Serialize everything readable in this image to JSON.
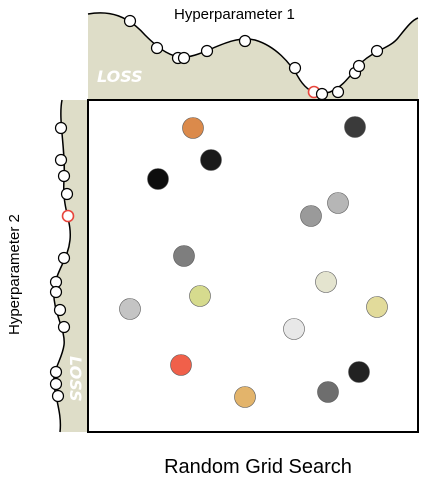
{
  "title": "Random Grid Search",
  "top_axis_label": "Hyperparameter 1",
  "left_axis_label": "Hyperparameter 2",
  "loss_label": "LOSS",
  "colors": {
    "loss_panel": "#deddc8",
    "highlight": "#e8453c",
    "frame": "#000000"
  },
  "points": [
    {
      "color": "#db8a4b"
    },
    {
      "color": "#3a3a3a"
    },
    {
      "color": "#1a1a1a"
    },
    {
      "color": "#0d0d0d"
    },
    {
      "color": "#9a9a9a"
    },
    {
      "color": "#b6b6b6"
    },
    {
      "color": "#7e7e7e"
    },
    {
      "color": "#d6db8e"
    },
    {
      "color": "#e4e4cf"
    },
    {
      "color": "#c4c4c4"
    },
    {
      "color": "#e2db9b"
    },
    {
      "color": "#e8e8e8"
    },
    {
      "color": "#f0604a"
    },
    {
      "color": "#e3b46b"
    },
    {
      "color": "#6e6e6e"
    },
    {
      "color": "#222222"
    }
  ]
}
